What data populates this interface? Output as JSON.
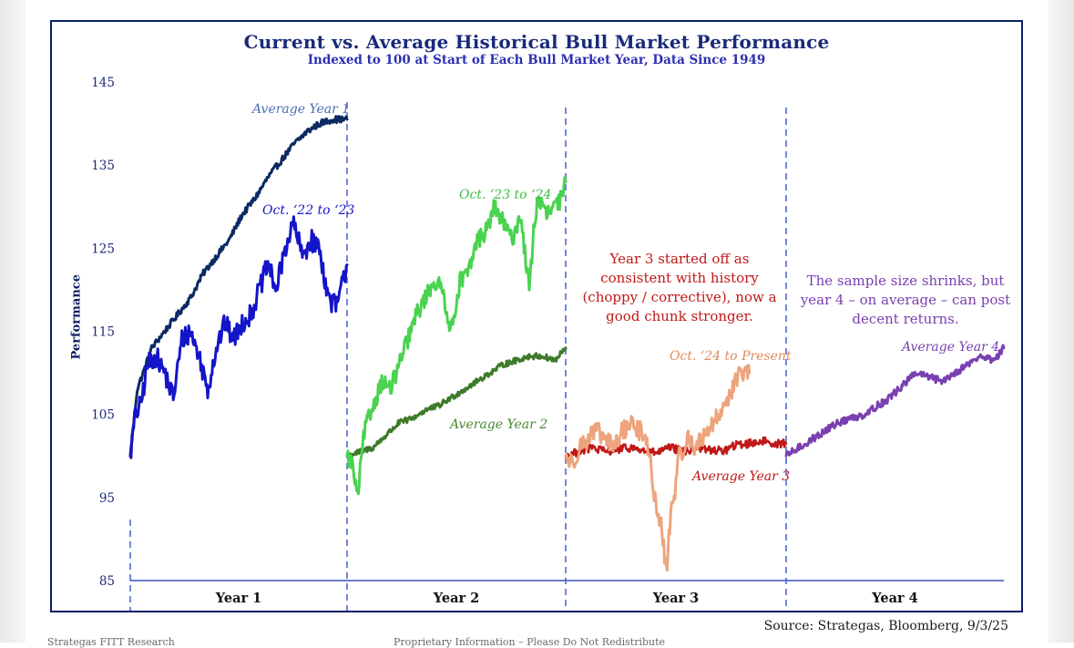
{
  "chart_data": {
    "type": "line",
    "title": "Current vs. Average Historical Bull Market Performance",
    "subtitle": "Indexed to 100 at Start of Each Bull Market Year, Data Since 1949",
    "ylabel": "Performance",
    "xlabel": "",
    "ylim": [
      85,
      145
    ],
    "yticks": [
      85,
      95,
      105,
      115,
      125,
      135,
      145
    ],
    "x_unit": "trading day within each bull market year (0–252)",
    "panels": [
      {
        "label": "Year 1",
        "index": 0
      },
      {
        "label": "Year 2",
        "index": 1
      },
      {
        "label": "Year 3",
        "index": 2
      },
      {
        "label": "Year 4",
        "index": 3
      }
    ],
    "series": [
      {
        "name": "Average Year 1",
        "label": "Average Year 1",
        "panel": 0,
        "color": "#0c2a63",
        "label_color": "#4a6fb5",
        "x": [
          0,
          8,
          15,
          25,
          40,
          55,
          70,
          85,
          100,
          115,
          130,
          145,
          160,
          175,
          190,
          205,
          220,
          235,
          252
        ],
        "values": [
          100,
          108,
          110,
          113,
          115,
          117,
          119,
          122,
          124,
          126,
          129,
          131,
          133.5,
          135.5,
          137.5,
          139,
          140,
          140.5,
          140.5
        ]
      },
      {
        "name": "Oct. '22 to '23",
        "label": "Oct. ‘22 to ‘23",
        "panel": 0,
        "color": "#1414c8",
        "label_color": "#1414c8",
        "x": [
          0,
          6,
          12,
          20,
          30,
          40,
          50,
          60,
          70,
          80,
          90,
          100,
          110,
          120,
          130,
          140,
          150,
          160,
          170,
          180,
          190,
          200,
          210,
          220,
          230,
          240,
          245,
          252
        ],
        "values": [
          100,
          105,
          106,
          111,
          112,
          110,
          107,
          114,
          115,
          112,
          108,
          113,
          116,
          114,
          116,
          117,
          120,
          123,
          120,
          125,
          128,
          124,
          126,
          125,
          119,
          118,
          120,
          123
        ]
      },
      {
        "name": "Average Year 2",
        "label": "Average Year 2",
        "panel": 1,
        "color": "#3d7a2a",
        "label_color": "#4a8a32",
        "x": [
          0,
          15,
          30,
          45,
          60,
          75,
          90,
          105,
          120,
          135,
          150,
          165,
          180,
          195,
          210,
          225,
          240,
          252
        ],
        "values": [
          100,
          100.5,
          101,
          102.5,
          104,
          104.5,
          105.5,
          106,
          107,
          108,
          109,
          110,
          111,
          111.5,
          112,
          112,
          111.5,
          113
        ]
      },
      {
        "name": "Oct. '23 to '24",
        "label": "Oct. ‘23 to ‘24",
        "panel": 1,
        "color": "#49d34f",
        "label_color": "#3fbf45",
        "x": [
          0,
          6,
          12,
          20,
          30,
          40,
          50,
          60,
          70,
          80,
          90,
          100,
          110,
          120,
          130,
          140,
          150,
          160,
          170,
          180,
          190,
          200,
          210,
          215,
          220,
          230,
          240,
          248,
          252
        ],
        "values": [
          100,
          99,
          95,
          103,
          106,
          109,
          108,
          111,
          114,
          117,
          119,
          121,
          120,
          115,
          121,
          122,
          126,
          127,
          130,
          128,
          126,
          129,
          120,
          127,
          131,
          129,
          130,
          131,
          133
        ]
      },
      {
        "name": "Average Year 3",
        "label": "Average Year 3",
        "panel": 2,
        "color": "#c01818",
        "label_color": "#c01818",
        "x": [
          0,
          15,
          30,
          45,
          60,
          75,
          90,
          105,
          120,
          135,
          150,
          165,
          180,
          195,
          210,
          225,
          240,
          252
        ],
        "values": [
          100,
          100.5,
          101,
          100.5,
          100.8,
          101,
          100.6,
          100.4,
          101,
          100.5,
          101,
          100.7,
          100.6,
          101.3,
          101.5,
          101.8,
          101.5,
          101.5
        ]
      },
      {
        "name": "Oct. '24 to Present",
        "label": "Oct. ‘24 to Present",
        "panel": 2,
        "color": "#eda47e",
        "label_color": "#e08b5e",
        "x": [
          0,
          8,
          15,
          25,
          35,
          45,
          55,
          65,
          75,
          85,
          95,
          100,
          105,
          110,
          115,
          120,
          125,
          130,
          140,
          150,
          160,
          170,
          180,
          190,
          200,
          210
        ],
        "values": [
          100,
          99,
          101,
          102,
          103,
          102,
          101,
          103,
          104,
          103,
          101,
          96,
          93,
          91,
          86,
          93,
          96,
          100,
          102,
          101,
          103,
          104,
          106,
          108,
          110,
          110
        ]
      },
      {
        "name": "Average Year 4",
        "label": "Average Year 4",
        "panel": 3,
        "color": "#7a3fb0",
        "label_color": "#7a3fb0",
        "x": [
          0,
          15,
          30,
          45,
          60,
          75,
          90,
          105,
          120,
          135,
          150,
          165,
          180,
          195,
          210,
          225,
          240,
          252
        ],
        "values": [
          100,
          101,
          102,
          103,
          104,
          104.5,
          105,
          106,
          107,
          108.5,
          110,
          109.5,
          109,
          110,
          111,
          112,
          111.5,
          113
        ]
      }
    ],
    "annotations": [
      {
        "text": "Year 3 started off as consistent with history (choppy / corrective), now a good chunk stronger.",
        "color": "#c01818",
        "panel": 2
      },
      {
        "text": "The sample size shrinks, but year 4 – on average – can post decent returns.",
        "color": "#7a3fb0",
        "panel": 3
      }
    ]
  },
  "annotation_lines": {
    "year3": [
      "Year 3 started off as",
      "consistent with history",
      "(choppy / corrective), now a",
      "good chunk stronger."
    ],
    "year4": [
      "The sample size shrinks, but",
      "year 4 – on average – can post",
      "decent returns."
    ]
  },
  "source_text": "Source: Strategas, Bloomberg, 9/3/25",
  "footer": {
    "left": "Strategas FITT Research",
    "center": "Proprietary Information – Please Do Not Redistribute"
  },
  "colors": {
    "frame": "#0a1f66",
    "axis": "#3b4fb8",
    "divider": "#4d6ad8",
    "tick_text": "#1a2a7a"
  }
}
